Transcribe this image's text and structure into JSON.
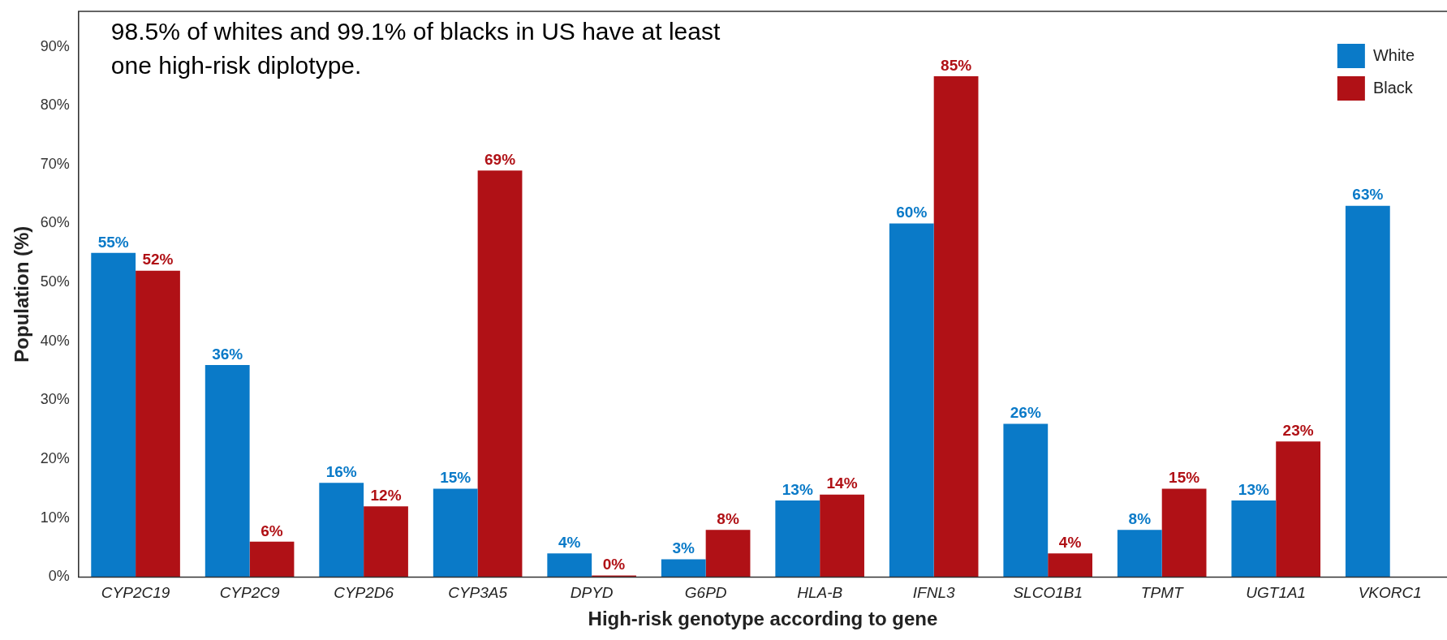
{
  "chart_data": {
    "type": "bar",
    "xlabel": "High-risk genotype according to gene",
    "ylabel": "Population (%)",
    "categories": [
      "CYP2C19",
      "CYP2C9",
      "CYP2D6",
      "CYP3A5",
      "DPYD",
      "G6PD",
      "HLA-B",
      "IFNL3",
      "SLCO1B1",
      "TPMT",
      "UGT1A1",
      "VKORC1"
    ],
    "series": [
      {
        "name": "White",
        "color": "#0a7ac8",
        "values": [
          55,
          36,
          16,
          15,
          4,
          3,
          13,
          60,
          26,
          8,
          13,
          63
        ],
        "value_labels": [
          "55%",
          "36%",
          "16%",
          "15%",
          "4%",
          "3%",
          "13%",
          "60%",
          "26%",
          "8%",
          "13%",
          "63%"
        ]
      },
      {
        "name": "Black",
        "color": "#b01116",
        "values": [
          52,
          6,
          12,
          69,
          0,
          8,
          14,
          85,
          4,
          15,
          23,
          null
        ],
        "value_labels": [
          "52%",
          "6%",
          "12%",
          "69%",
          "0%",
          "8%",
          "14%",
          "85%",
          "4%",
          "15%",
          "23%",
          null
        ]
      }
    ],
    "ylim": [
      0,
      96
    ],
    "yticks": [
      {
        "value": 0,
        "label": "0%"
      },
      {
        "value": 10,
        "label": "10%"
      },
      {
        "value": 20,
        "label": "20%"
      },
      {
        "value": 30,
        "label": "30%"
      },
      {
        "value": 40,
        "label": "40%"
      },
      {
        "value": 50,
        "label": "50%"
      },
      {
        "value": 60,
        "label": "60%"
      },
      {
        "value": 70,
        "label": "70%"
      },
      {
        "value": 80,
        "label": "80%"
      },
      {
        "value": 90,
        "label": "90%"
      }
    ],
    "grid": false,
    "legend": "top right",
    "annotations": [
      "98.5% of whites and 99.1% of blacks in US have at least one high-risk diplotype."
    ]
  }
}
